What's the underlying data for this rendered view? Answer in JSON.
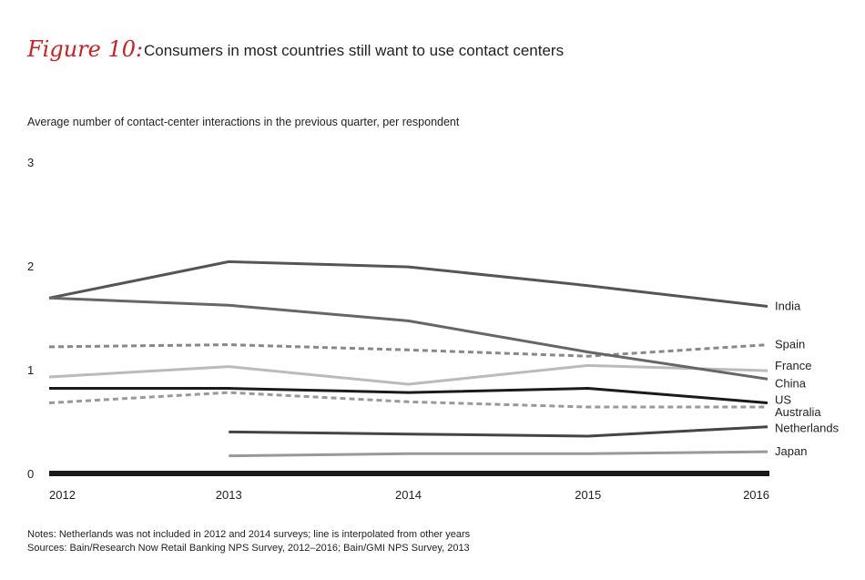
{
  "figure": {
    "label": "Figure 10:",
    "title": "Consumers in most countries still want to use contact centers"
  },
  "notes": [
    "Notes: Netherlands was not included in 2012 and 2014 surveys; line is interpolated from other years",
    "Sources: Bain/Research Now Retail Banking NPS Survey, 2012–2016; Bain/GMI NPS Survey, 2013"
  ],
  "chart_data": {
    "type": "line",
    "title": "Consumers in most countries still want to use contact centers",
    "ylabel": "Average number of contact-center interactions in the previous quarter, per respondent",
    "xlabel": "",
    "x": [
      2012,
      2013,
      2014,
      2015,
      2016
    ],
    "x_tick_labels": [
      "2012",
      "2013",
      "2014",
      "2015",
      "2016"
    ],
    "y_ticks": [
      0,
      1,
      2,
      3
    ],
    "y_tick_labels": [
      "0",
      "1",
      "2",
      "3"
    ],
    "ylim": [
      0,
      3
    ],
    "grid": false,
    "legend": "direct labels at right end of lines",
    "series": [
      {
        "name": "India",
        "values": [
          1.69,
          2.04,
          1.99,
          1.81,
          1.61
        ],
        "color": "#555555",
        "dash": "solid",
        "width": 3
      },
      {
        "name": "Spain",
        "values": [
          1.22,
          1.24,
          1.19,
          1.13,
          1.24
        ],
        "color": "#888888",
        "dash": "dashed",
        "width": 3
      },
      {
        "name": "France",
        "values": [
          0.93,
          1.03,
          0.86,
          1.04,
          0.99
        ],
        "color": "#bbbbbb",
        "dash": "solid",
        "width": 3
      },
      {
        "name": "China",
        "values": [
          1.69,
          1.62,
          1.47,
          1.17,
          0.91
        ],
        "color": "#666666",
        "dash": "solid",
        "width": 3
      },
      {
        "name": "US",
        "values": [
          0.82,
          0.82,
          0.78,
          0.82,
          0.68
        ],
        "color": "#1a1a1a",
        "dash": "solid",
        "width": 3
      },
      {
        "name": "Australia",
        "values": [
          0.68,
          0.78,
          0.69,
          0.64,
          0.64
        ],
        "color": "#999999",
        "dash": "dashed",
        "width": 3
      },
      {
        "name": "Netherlands",
        "values": [
          null,
          0.4,
          0.38,
          0.36,
          0.45
        ],
        "color": "#444444",
        "dash": "solid",
        "width": 3
      },
      {
        "name": "Japan",
        "values": [
          null,
          0.17,
          0.19,
          0.19,
          0.21
        ],
        "color": "#999999",
        "dash": "solid",
        "width": 3
      }
    ]
  }
}
